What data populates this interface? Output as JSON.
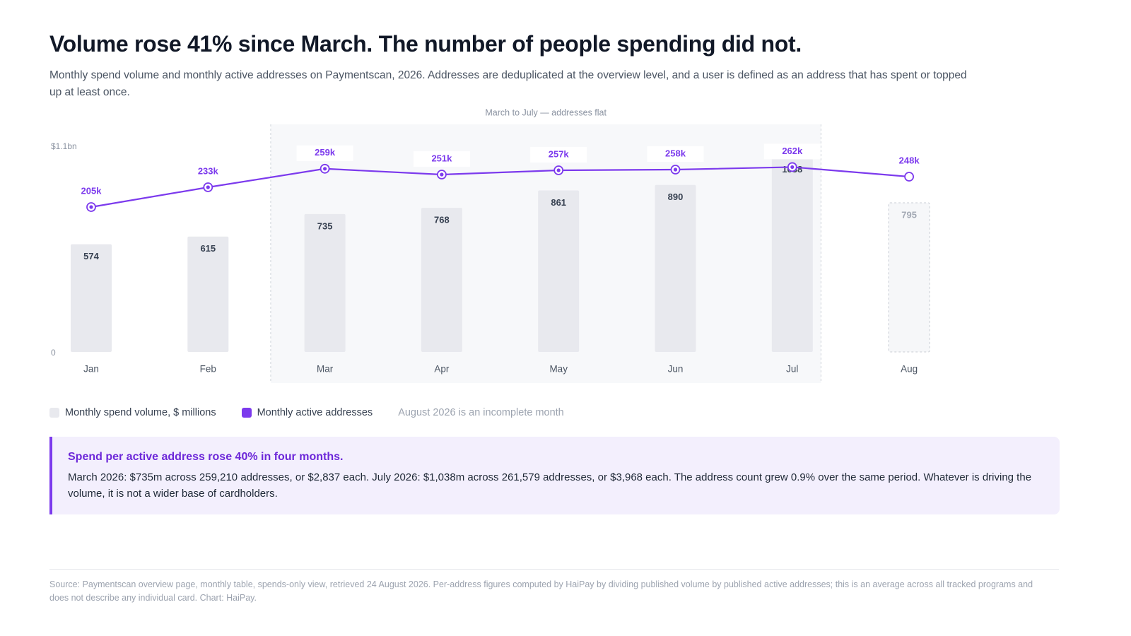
{
  "title": "Volume rose 41% since March. The number of people spending did not.",
  "subtitle": "Monthly spend volume and monthly active addresses on Paymentscan, 2026. Addresses are deduplicated at the overview level, and a user is defined as an address that has spent or topped up at least once.",
  "chart_data": {
    "type": "bar-line",
    "categories": [
      "Jan",
      "Feb",
      "Mar",
      "Apr",
      "May",
      "Jun",
      "Jul",
      "Aug"
    ],
    "series": [
      {
        "name": "Monthly spend volume, $ millions",
        "type": "bar",
        "color": "#e8e9ee",
        "values": [
          574,
          615,
          735,
          768,
          861,
          890,
          1038,
          795
        ]
      },
      {
        "name": "Monthly active addresses",
        "type": "line",
        "axis": "y2",
        "color": "#7c3aed",
        "values": [
          205000,
          233000,
          259210,
          251000,
          257000,
          258000,
          261579,
          248000
        ],
        "value_labels": [
          "205k",
          "233k",
          "259k",
          "251k",
          "257k",
          "258k",
          "262k",
          "248k"
        ]
      }
    ],
    "ylim": [
      0,
      1100
    ],
    "yticks": [
      0,
      {
        "value": 1100,
        "label": "$1.1bn"
      }
    ],
    "y2lim": [
      0,
      292000
    ],
    "grid": false,
    "incomplete_index": 7,
    "incomplete_note": "August 2026 is an incomplete month",
    "highlight": {
      "from": "Mar",
      "to": "Jul",
      "label": "March to July — addresses flat"
    }
  },
  "callout": {
    "title": "Spend per active address rose 40% in four months.",
    "body": "March 2026: $735m across 259,210 addresses, or $2,837 each. July 2026: $1,038m across 261,579 addresses, or $3,968 each. The address count grew 0.9% over the same period. Whatever is driving the volume, it is not a wider base of cardholders."
  },
  "source": "Source: Paymentscan overview page, monthly table, spends-only view, retrieved 24 August 2026. Per-address figures computed by HaiPay by dividing published volume by published active addresses; this is an average across all tracked programs and does not describe any individual card. Chart: HaiPay."
}
